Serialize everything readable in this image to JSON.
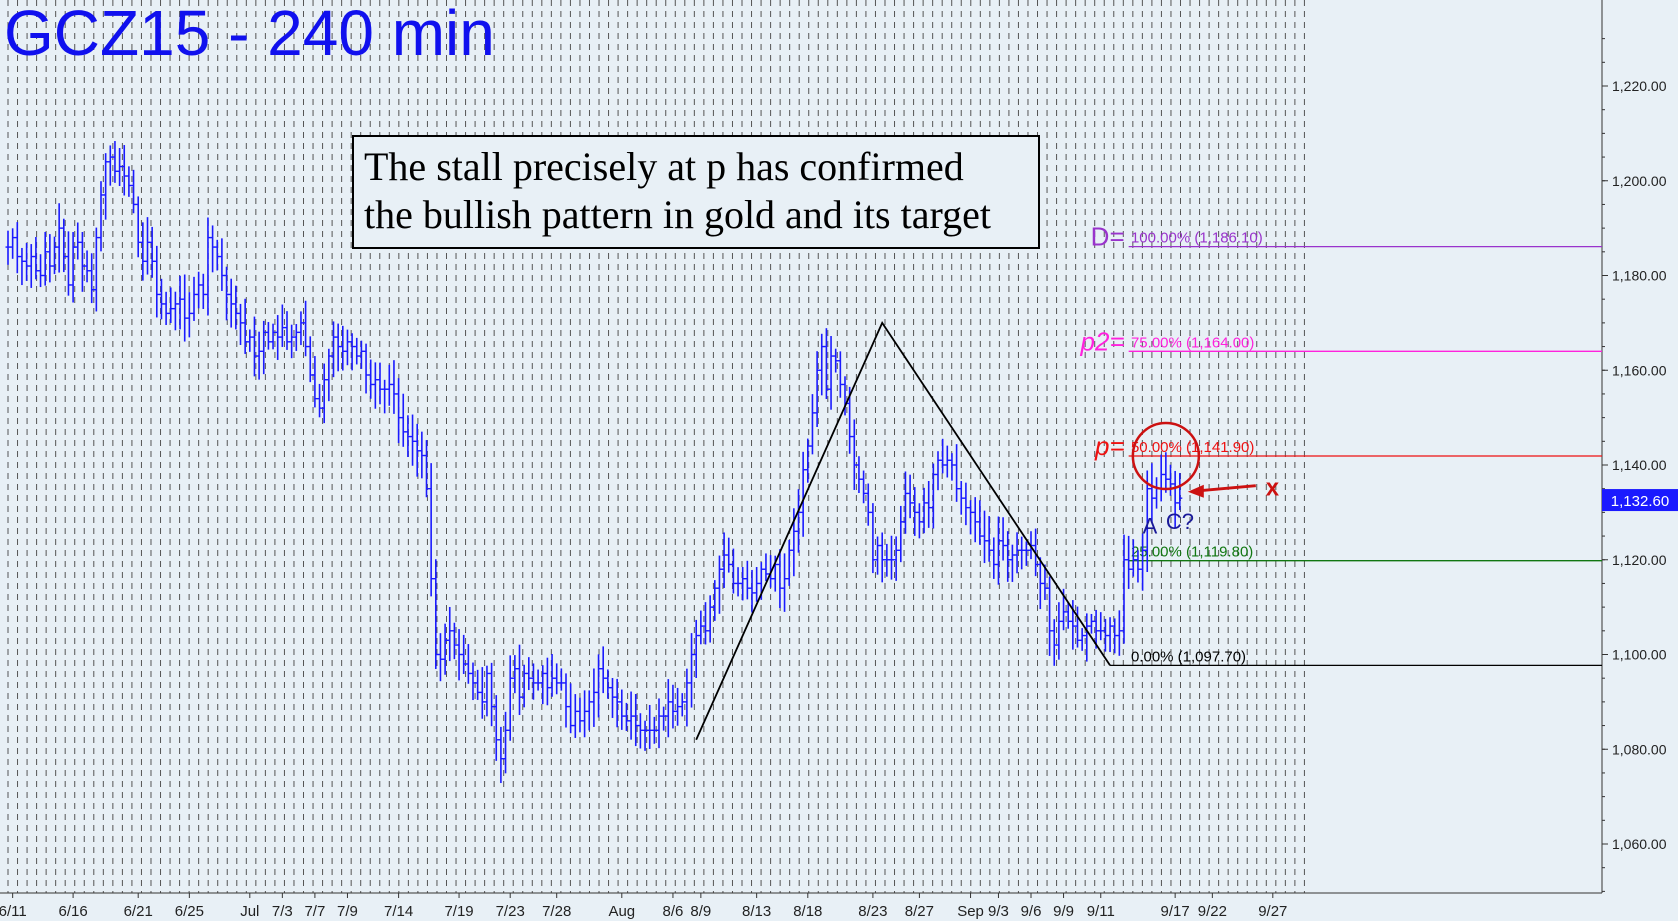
{
  "title": "GCZ15 - 240 min",
  "annotation": {
    "line1": "The stall precisely at p has confirmed",
    "line2": "the bullish pattern in gold and its target"
  },
  "colors": {
    "background": "#e8f0f6",
    "price": "#1a1aff",
    "title": "#1010ee",
    "d_level": "#9933cc",
    "p2_level": "#ff22dd",
    "p_level": "#ee1111",
    "c_level": "#117711",
    "zero_level": "#000000",
    "circle": "#cc1111"
  },
  "chart_data": {
    "type": "line",
    "title": "GCZ15 - 240 min",
    "ylim": [
      1050,
      1230
    ],
    "yticks": [
      "1,060.00",
      "1,080.00",
      "1,100.00",
      "1,120.00",
      "1,140.00",
      "1,160.00",
      "1,180.00",
      "1,200.00",
      "1,220.00"
    ],
    "ytick_values": [
      1060,
      1080,
      1100,
      1120,
      1140,
      1160,
      1180,
      1200,
      1220
    ],
    "xticks": [
      "6/11",
      "6/16",
      "6/21",
      "6/25",
      "Jul",
      "7/3",
      "7/7",
      "7/9",
      "7/14",
      "7/19",
      "7/23",
      "7/28",
      "Aug",
      "8/6",
      "8/9",
      "8/13",
      "8/18",
      "8/23",
      "8/27",
      "Sep",
      "9/3",
      "9/6",
      "9/9",
      "9/11",
      "9/17",
      "9/22",
      "9/27"
    ],
    "xtick_index": [
      1,
      14,
      28,
      39,
      52,
      59,
      66,
      73,
      84,
      97,
      108,
      118,
      132,
      143,
      149,
      161,
      172,
      186,
      196,
      207,
      213,
      220,
      227,
      235,
      251,
      259,
      272
    ],
    "last_price": "1,132.60",
    "last_value": 1132.6,
    "series": [
      {
        "values": [
          1186,
          1188,
          1184,
          1183,
          1182,
          1184,
          1181,
          1180,
          1185,
          1182,
          1186,
          1190,
          1184,
          1178,
          1186,
          1187,
          1182,
          1181,
          1177,
          1188,
          1197,
          1204,
          1205,
          1202,
          1203,
          1201,
          1199,
          1195,
          1187,
          1183,
          1187,
          1183,
          1176,
          1174,
          1172,
          1173,
          1174,
          1175,
          1171,
          1172,
          1176,
          1178,
          1176,
          1188,
          1186,
          1184,
          1180,
          1176,
          1174,
          1172,
          1170,
          1166,
          1167,
          1163,
          1164,
          1168,
          1166,
          1168,
          1167,
          1169,
          1166,
          1167,
          1168,
          1170,
          1165,
          1159,
          1154,
          1152,
          1158,
          1163,
          1167,
          1165,
          1164,
          1166,
          1165,
          1163,
          1164,
          1159,
          1157,
          1158,
          1156,
          1156,
          1157,
          1155,
          1150,
          1147,
          1146,
          1145,
          1143,
          1142,
          1135,
          1116,
          1100,
          1099,
          1103,
          1105,
          1102,
          1100,
          1098,
          1096,
          1094,
          1092,
          1090,
          1096,
          1089,
          1082,
          1078,
          1084,
          1095,
          1097,
          1091,
          1096,
          1095,
          1094,
          1094,
          1096,
          1093,
          1095,
          1094,
          1094,
          1089,
          1085,
          1088,
          1086,
          1088,
          1090,
          1092,
          1097,
          1095,
          1093,
          1091,
          1090,
          1087,
          1086,
          1087,
          1085,
          1084,
          1084,
          1084,
          1084,
          1087,
          1087,
          1090,
          1088,
          1089,
          1090,
          1094,
          1100,
          1104,
          1106,
          1105,
          1110,
          1114,
          1118,
          1121,
          1119,
          1115,
          1115,
          1116,
          1114,
          1113,
          1115,
          1118,
          1117,
          1116,
          1119,
          1114,
          1116,
          1122,
          1126,
          1130,
          1139,
          1144,
          1151,
          1160,
          1165,
          1156,
          1163,
          1162,
          1157,
          1153,
          1146,
          1140,
          1137,
          1134,
          1130,
          1120,
          1123,
          1120,
          1120,
          1120,
          1122,
          1128,
          1134,
          1132,
          1130,
          1128,
          1132,
          1131,
          1138,
          1141,
          1140,
          1141,
          1140,
          1135,
          1133,
          1131,
          1130,
          1128,
          1125,
          1124,
          1122,
          1119,
          1124,
          1123,
          1120,
          1121,
          1122,
          1122,
          1122,
          1123,
          1119,
          1115,
          1114,
          1105,
          1102,
          1107,
          1109,
          1107,
          1106,
          1103,
          1104,
          1106,
          1107,
          1105,
          1105,
          1104,
          1106,
          1104,
          1105,
          1120,
          1118,
          1120,
          1118,
          1122,
          1135,
          1133,
          1135,
          1138,
          1137,
          1136,
          1132,
          1133
        ]
      }
    ],
    "zigzag": [
      {
        "index": 148,
        "value": 1082
      },
      {
        "index": 188,
        "value": 1170
      },
      {
        "index": 237,
        "value": 1097.7
      }
    ],
    "fib_levels": [
      {
        "key": "D",
        "label": "D=",
        "text": "100.00% (1,186.10)",
        "value": 1186.1,
        "color": "#9933cc"
      },
      {
        "key": "p2",
        "label": "p2=",
        "text": "75.00% (1,164.00)",
        "value": 1164.0,
        "color": "#ff22dd"
      },
      {
        "key": "p",
        "label": "p=",
        "text": "50.00% (1,141.90)",
        "value": 1141.9,
        "color": "#ee1111"
      },
      {
        "key": "c",
        "label": "",
        "text": "25.00% (1,119.80)",
        "value": 1119.8,
        "color": "#117711"
      },
      {
        "key": "zero",
        "label": "",
        "text": "0.00% (1,097.70)",
        "value": 1097.7,
        "color": "#000000"
      }
    ],
    "labels": {
      "a": "A",
      "c": "C?",
      "x": "x"
    }
  }
}
